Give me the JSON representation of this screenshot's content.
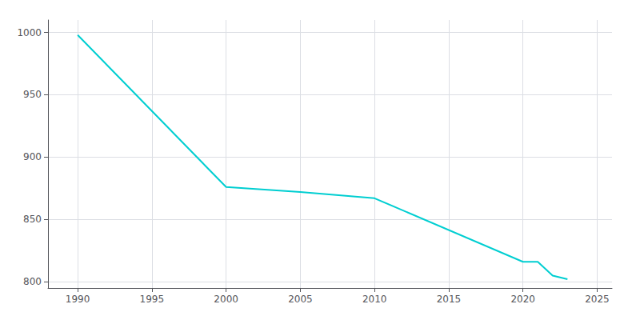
{
  "chart_data": {
    "type": "line",
    "x": [
      1990,
      2000,
      2005,
      2010,
      2020,
      2021,
      2022,
      2023
    ],
    "values": [
      998,
      876,
      872,
      867,
      816,
      816,
      805,
      802
    ],
    "color": "#00CED1",
    "xlim": [
      1988,
      2026
    ],
    "ylim": [
      795,
      1010
    ],
    "xticks": [
      1990,
      1995,
      2000,
      2005,
      2010,
      2015,
      2020,
      2025
    ],
    "yticks": [
      800,
      850,
      900,
      950,
      1000
    ],
    "grid": true
  }
}
